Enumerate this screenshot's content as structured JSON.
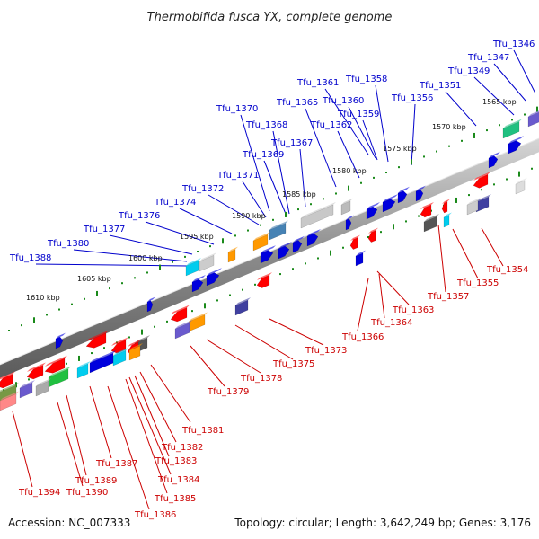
{
  "title": "Thermobifida fusca YX, complete genome",
  "footer": {
    "accession": "Accession: NC_007333",
    "summary": "Topology: circular; Length: 3,642,249 bp; Genes: 3,176"
  },
  "colors": {
    "top_label": "#0000cc",
    "bottom_label": "#cc0000",
    "backbone": "#808080",
    "tick": "#1a8a1a"
  },
  "kbp_labels": [
    "1565 kbp",
    "1570 kbp",
    "1575 kbp",
    "1580 kbp",
    "1585 kbp",
    "1590 kbp",
    "1595 kbp",
    "1600 kbp",
    "1605 kbp",
    "1610 kbp"
  ],
  "top_labels": [
    "Tfu_1346",
    "Tfu_1347",
    "Tfu_1349",
    "Tfu_1351",
    "Tfu_1356",
    "Tfu_1358",
    "Tfu_1361",
    "Tfu_1360",
    "Tfu_1359",
    "Tfu_1365",
    "Tfu_1362",
    "Tfu_1370",
    "Tfu_1368",
    "Tfu_1367",
    "Tfu_1369",
    "Tfu_1371",
    "Tfu_1372",
    "Tfu_1374",
    "Tfu_1376",
    "Tfu_1377",
    "Tfu_1380",
    "Tfu_1388"
  ],
  "bottom_labels": [
    "Tfu_1354",
    "Tfu_1355",
    "Tfu_1357",
    "Tfu_1363",
    "Tfu_1364",
    "Tfu_1366",
    "Tfu_1373",
    "Tfu_1375",
    "Tfu_1378",
    "Tfu_1379",
    "Tfu_1381",
    "Tfu_1382",
    "Tfu_1383",
    "Tfu_1384",
    "Tfu_1385",
    "Tfu_1386",
    "Tfu_1387",
    "Tfu_1389",
    "Tfu_1390",
    "Tfu_1394"
  ]
}
